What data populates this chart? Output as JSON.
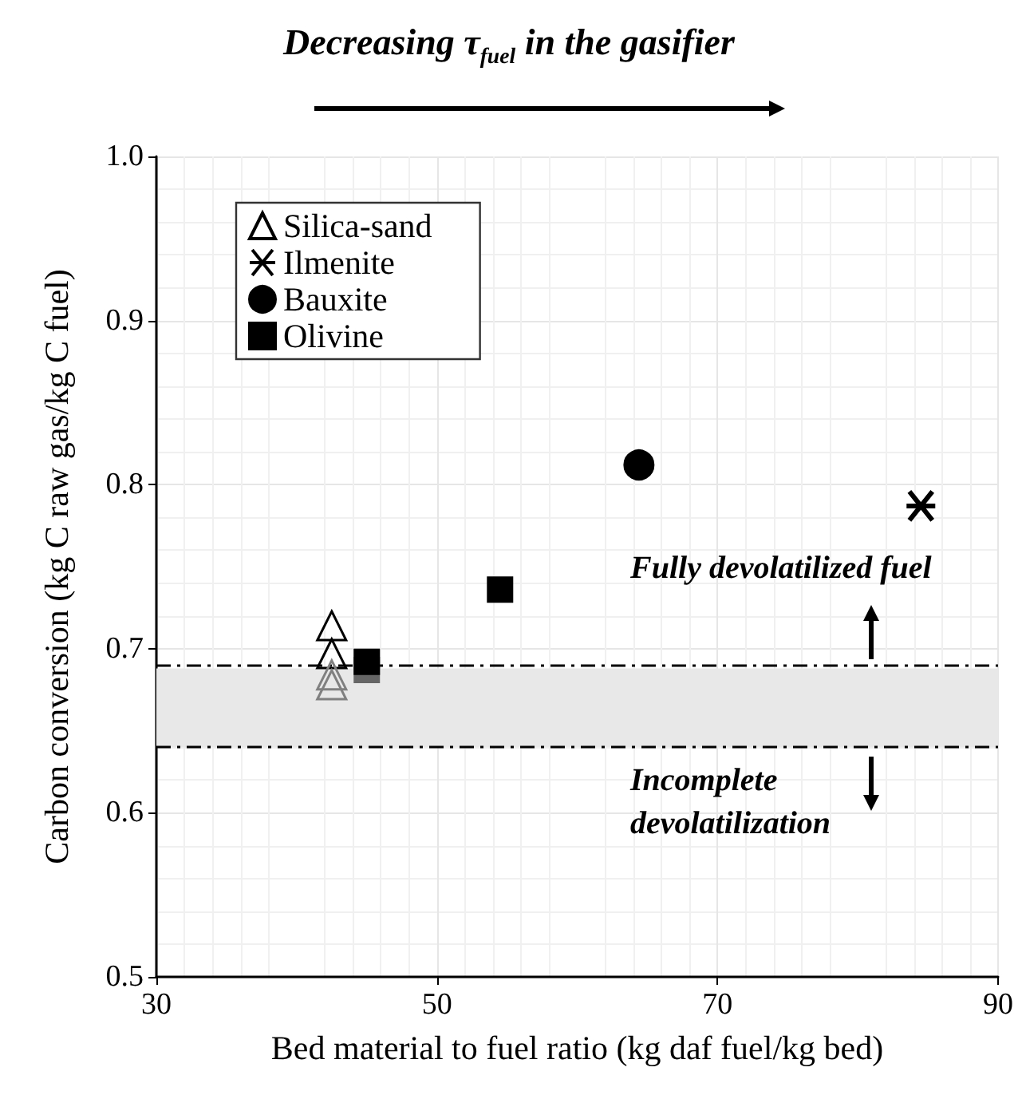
{
  "chart_data": {
    "type": "scatter",
    "title": "Decreasing τ$_{fuel}$ in the gasifier",
    "xlabel": "Bed material to fuel ratio (kg daf fuel/kg bed)",
    "ylabel": "Carbon conversion (kg C raw gas/kg C fuel)",
    "series": [
      {
        "name": "Silica-sand",
        "color": "#000000",
        "marker": "triangle",
        "x": [
          42.5,
          42.5,
          42.5,
          42.5
        ],
        "values": [
          0.714,
          0.697,
          0.684,
          0.678
        ],
        "colors": [
          "#000000",
          "#000000",
          "#808080",
          "#808080"
        ]
      },
      {
        "name": "Ilmenite",
        "color": "#000000",
        "marker": "cross",
        "x": [
          84.5
        ],
        "values": [
          0.787
        ]
      },
      {
        "name": "Bauxite",
        "color": "#000000",
        "marker": "circle",
        "x": [
          64.4
        ],
        "values": [
          0.812
        ]
      },
      {
        "name": "Olivine",
        "color": "#000000",
        "marker": "square",
        "x": [
          45,
          45,
          54.5
        ],
        "values": [
          0.687,
          0.692,
          0.736
        ],
        "colors": [
          "#666666",
          "#000000",
          "#000000"
        ]
      }
    ],
    "xlim": [
      30,
      90
    ],
    "xticks": [
      30,
      50,
      70,
      90
    ],
    "ylim": [
      0.5,
      1.0
    ],
    "yticks": [
      0.5,
      0.6,
      0.7,
      0.8,
      0.9,
      {
        "value": 1.0,
        "label": "1.0"
      }
    ],
    "ref_lines": [
      {
        "axis": "y",
        "value": 0.688,
        "line_style": "dashed",
        "color": "#000000"
      },
      {
        "axis": "y",
        "value": 0.64,
        "line_style": "dashed",
        "color": "#000000"
      }
    ],
    "bands": [
      {
        "axis": "y",
        "from": 0.64,
        "to": 0.688,
        "color": "#e8e8e8"
      }
    ],
    "annotations": [
      "Fully devolatilized fuel",
      "Incomplete devolatilization"
    ],
    "grid": true,
    "legend": "top left"
  }
}
